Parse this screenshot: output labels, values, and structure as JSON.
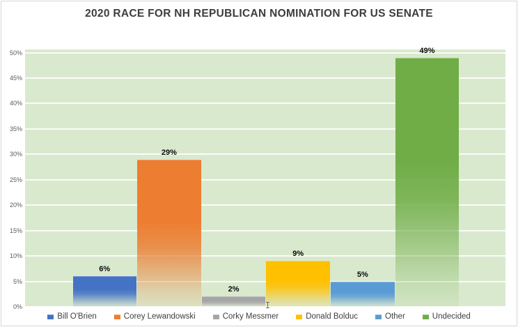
{
  "chart_data": {
    "type": "bar",
    "title": "2020 RACE FOR NH REPUBLICAN NOMINATION FOR US SENATE",
    "categories": [
      "Bill O'Brien",
      "Corey Lewandowski",
      "Corky Messmer",
      "Donald Bolduc",
      "Other",
      "Undecided"
    ],
    "values": [
      6,
      29,
      2,
      9,
      5,
      49
    ],
    "data_labels": [
      "6%",
      "29%",
      "2%",
      "9%",
      "5%",
      "49%"
    ],
    "colors": [
      "#4472C4",
      "#ED7D31",
      "#A5A5A5",
      "#FFC000",
      "#5B9BD5",
      "#70AD47"
    ],
    "xlabel": "",
    "ylabel": "",
    "ylim": [
      0,
      50
    ],
    "ytick_step": 5,
    "ytick_labels": [
      "0%",
      "5%",
      "10%",
      "15%",
      "20%",
      "25%",
      "30%",
      "35%",
      "40%",
      "45%",
      "50%"
    ],
    "grid": true,
    "legend_position": "bottom",
    "plot_background": "#D9E9CE",
    "gridline_color": "#FFFFFF",
    "title_color": "#3D3D3D",
    "axis_label_color": "#595959"
  }
}
